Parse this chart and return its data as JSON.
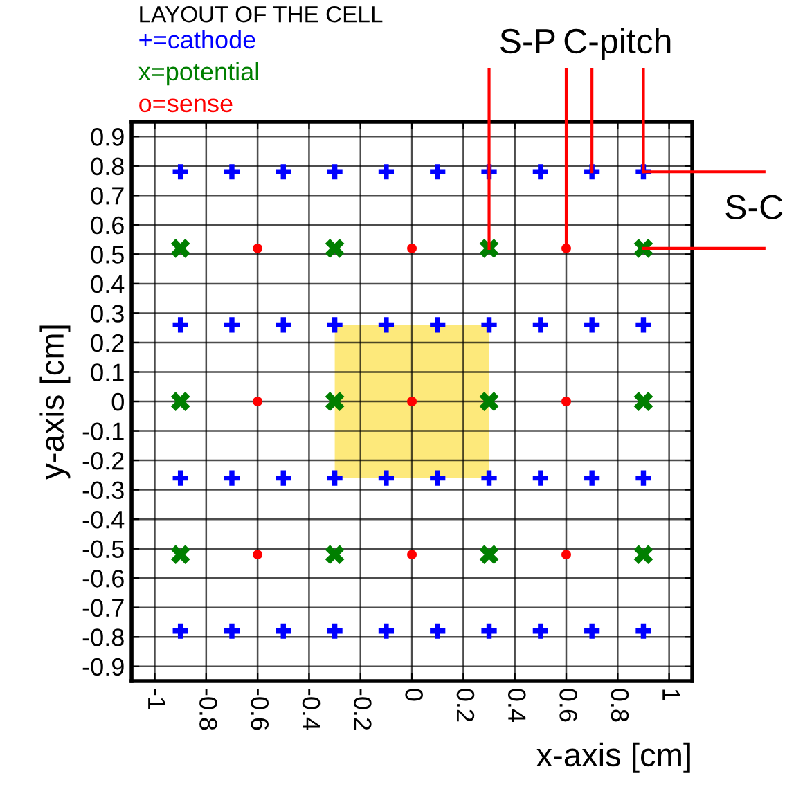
{
  "chart_data": {
    "type": "scatter",
    "title": "LAYOUT OF THE CELL",
    "xlabel": "x-axis [cm]",
    "ylabel": "y-axis [cm]",
    "xlim": [
      -1.09,
      1.09
    ],
    "ylim": [
      -0.95,
      0.95
    ],
    "xticks": [
      -1,
      -0.8,
      -0.6,
      -0.4,
      -0.2,
      0,
      0.2,
      0.4,
      0.6,
      0.8,
      1
    ],
    "yticks": [
      0.9,
      0.8,
      0.7,
      0.6,
      0.5,
      0.4,
      0.3,
      0.2,
      0.1,
      0,
      -0.1,
      -0.2,
      -0.3,
      -0.4,
      -0.5,
      -0.6,
      -0.7,
      -0.8,
      -0.9
    ],
    "grid": true,
    "legend": "top left",
    "series": [
      {
        "type": "area",
        "color": "#fde97b",
        "x": [
          -0.3,
          -0.3,
          0.3,
          0.3
        ],
        "values": [
          -0.26,
          0.26,
          0.26,
          -0.26
        ]
      },
      {
        "name": "+=cathode",
        "color": "#0000ff",
        "marker": "plus",
        "x": [
          -0.9,
          -0.7,
          -0.5,
          -0.3,
          -0.1,
          0.1,
          0.3,
          0.5,
          0.7,
          0.9,
          -0.9,
          -0.7,
          -0.5,
          -0.3,
          -0.1,
          0.1,
          0.3,
          0.5,
          0.7,
          0.9,
          -0.9,
          -0.7,
          -0.5,
          -0.3,
          -0.1,
          0.1,
          0.3,
          0.5,
          0.7,
          0.9,
          -0.9,
          -0.7,
          -0.5,
          -0.3,
          -0.1,
          0.1,
          0.3,
          0.5,
          0.7,
          0.9
        ],
        "values": [
          0.78,
          0.78,
          0.78,
          0.78,
          0.78,
          0.78,
          0.78,
          0.78,
          0.78,
          0.78,
          0.26,
          0.26,
          0.26,
          0.26,
          0.26,
          0.26,
          0.26,
          0.26,
          0.26,
          0.26,
          -0.26,
          -0.26,
          -0.26,
          -0.26,
          -0.26,
          -0.26,
          -0.26,
          -0.26,
          -0.26,
          -0.26,
          -0.78,
          -0.78,
          -0.78,
          -0.78,
          -0.78,
          -0.78,
          -0.78,
          -0.78,
          -0.78,
          -0.78
        ]
      },
      {
        "name": "x=potential",
        "color": "#007f00",
        "marker": "cross",
        "x": [
          -0.9,
          -0.3,
          0.3,
          0.9,
          -0.9,
          -0.3,
          0.3,
          0.9,
          -0.9,
          -0.3,
          0.3,
          0.9
        ],
        "values": [
          0.52,
          0.52,
          0.52,
          0.52,
          0,
          0,
          0,
          0,
          -0.52,
          -0.52,
          -0.52,
          -0.52
        ]
      },
      {
        "name": "o=sense",
        "color": "#ff0000",
        "marker": "circle",
        "x": [
          -0.6,
          0,
          0.6,
          -0.6,
          0,
          0.6,
          -0.6,
          0,
          0.6
        ],
        "values": [
          0.52,
          0.52,
          0.52,
          0,
          0,
          0,
          -0.52,
          -0.52,
          -0.52
        ]
      }
    ],
    "annotations": [
      {
        "text": "S-P",
        "x": 0.3,
        "y": 0.52
      },
      {
        "text": "C-pitch",
        "x": 0.7,
        "y": 0.78
      },
      {
        "text": "S-C",
        "x": 0.9,
        "y": 0.52
      }
    ]
  }
}
